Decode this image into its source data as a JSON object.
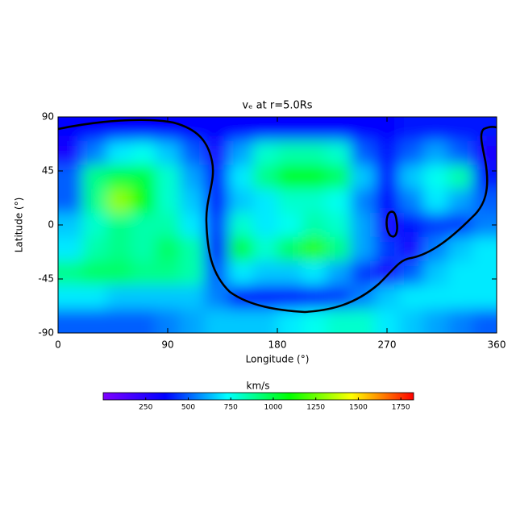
{
  "chart_data": {
    "type": "heatmap",
    "title": "vₑ at r=5.0Rs",
    "x_label": "Longitude (°)",
    "y_label": "Latitude (°)",
    "xlim": [
      0,
      360
    ],
    "xticks": [
      0,
      90,
      180,
      270,
      360
    ],
    "ylim": [
      -90,
      90
    ],
    "yticks": [
      -90,
      -45,
      0,
      45,
      90
    ],
    "x": [
      10,
      30,
      50,
      70,
      90,
      110,
      130,
      150,
      170,
      190,
      210,
      230,
      250,
      270,
      290,
      310,
      330,
      350
    ],
    "y": [
      80,
      60,
      40,
      20,
      0,
      -20,
      -40,
      -60,
      -80
    ],
    "z": [
      [
        350,
        350,
        350,
        350,
        350,
        350,
        350,
        350,
        350,
        350,
        350,
        350,
        350,
        350,
        400,
        400,
        400,
        400
      ],
      [
        300,
        550,
        700,
        750,
        650,
        500,
        300,
        600,
        800,
        850,
        850,
        800,
        500,
        400,
        500,
        600,
        500,
        300
      ],
      [
        500,
        900,
        1000,
        1000,
        800,
        600,
        400,
        700,
        900,
        1050,
        1050,
        950,
        650,
        400,
        650,
        750,
        850,
        400
      ],
      [
        500,
        900,
        1300,
        1100,
        800,
        650,
        400,
        650,
        700,
        800,
        800,
        750,
        550,
        350,
        550,
        700,
        600,
        500
      ],
      [
        650,
        800,
        900,
        850,
        850,
        700,
        450,
        800,
        700,
        750,
        850,
        800,
        600,
        300,
        400,
        450,
        450,
        550
      ],
      [
        700,
        850,
        900,
        850,
        950,
        850,
        400,
        1000,
        800,
        950,
        1150,
        900,
        600,
        450,
        300,
        550,
        650,
        700
      ],
      [
        900,
        950,
        950,
        900,
        900,
        850,
        500,
        700,
        650,
        650,
        700,
        600,
        450,
        300,
        500,
        650,
        700,
        700
      ],
      [
        700,
        700,
        650,
        650,
        650,
        650,
        550,
        350,
        350,
        350,
        400,
        450,
        550,
        650,
        700,
        700,
        700,
        700
      ],
      [
        500,
        500,
        500,
        500,
        550,
        600,
        650,
        650,
        650,
        700,
        750,
        800,
        800,
        700,
        650,
        600,
        550,
        500
      ]
    ],
    "colorbar_label": "km/s",
    "zlim": [
      0,
      1825
    ],
    "zticks": [
      250,
      500,
      750,
      1000,
      1250,
      1500,
      1750
    ],
    "colormap": [
      "#7f00ff",
      "#0000ff",
      "#00ffff",
      "#00ff00",
      "#ffff00",
      "#ff0000"
    ]
  }
}
